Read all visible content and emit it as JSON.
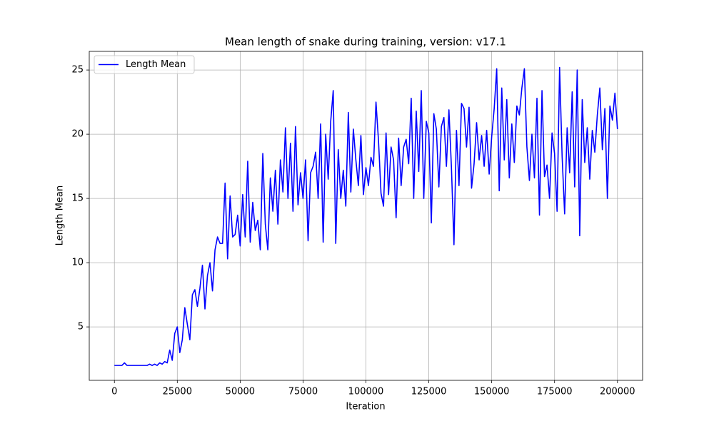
{
  "chart_data": {
    "type": "line",
    "title": "Mean length of snake during training, version: v17.1",
    "x_label": "Iteration",
    "y_label": "Length Mean",
    "xlim": [
      -10000,
      210000
    ],
    "ylim": [
      0.84,
      26.45
    ],
    "xticks": [
      0,
      25000,
      50000,
      75000,
      100000,
      125000,
      150000,
      175000,
      200000
    ],
    "yticks": [
      5,
      10,
      15,
      20,
      25
    ],
    "grid": true,
    "legend": "upper left",
    "x": [
      0,
      1000,
      2000,
      3000,
      4000,
      5000,
      6000,
      7000,
      8000,
      9000,
      10000,
      11000,
      12000,
      13000,
      14000,
      15000,
      16000,
      17000,
      18000,
      19000,
      20000,
      21000,
      22000,
      23000,
      24000,
      25000,
      26000,
      27000,
      28000,
      29000,
      30000,
      31000,
      32000,
      33000,
      34000,
      35000,
      36000,
      37000,
      38000,
      39000,
      40000,
      41000,
      42000,
      43000,
      44000,
      45000,
      46000,
      47000,
      48000,
      49000,
      50000,
      51000,
      52000,
      53000,
      54000,
      55000,
      56000,
      57000,
      58000,
      59000,
      60000,
      61000,
      62000,
      63000,
      64000,
      65000,
      66000,
      67000,
      68000,
      69000,
      70000,
      71000,
      72000,
      73000,
      74000,
      75000,
      76000,
      77000,
      78000,
      79000,
      80000,
      81000,
      82000,
      83000,
      84000,
      85000,
      86000,
      87000,
      88000,
      89000,
      90000,
      91000,
      92000,
      93000,
      94000,
      95000,
      96000,
      97000,
      98000,
      99000,
      100000,
      101000,
      102000,
      103000,
      104000,
      105000,
      106000,
      107000,
      108000,
      109000,
      110000,
      111000,
      112000,
      113000,
      114000,
      115000,
      116000,
      117000,
      118000,
      119000,
      120000,
      121000,
      122000,
      123000,
      124000,
      125000,
      126000,
      127000,
      128000,
      129000,
      130000,
      131000,
      132000,
      133000,
      134000,
      135000,
      136000,
      137000,
      138000,
      139000,
      140000,
      141000,
      142000,
      143000,
      144000,
      145000,
      146000,
      147000,
      148000,
      149000,
      150000,
      151000,
      152000,
      153000,
      154000,
      155000,
      156000,
      157000,
      158000,
      159000,
      160000,
      161000,
      162000,
      163000,
      164000,
      165000,
      166000,
      167000,
      168000,
      169000,
      170000,
      171000,
      172000,
      173000,
      174000,
      175000,
      176000,
      177000,
      178000,
      179000,
      180000,
      181000,
      182000,
      183000,
      184000,
      185000,
      186000,
      187000,
      188000,
      189000,
      190000,
      191000,
      192000,
      193000,
      194000,
      195000,
      196000,
      197000,
      198000,
      199000,
      200000
    ],
    "series": [
      {
        "name": "Length Mean",
        "color": "#0000ff",
        "values": [
          2,
          2,
          2,
          2,
          2.2,
          2,
          2,
          2,
          2,
          2,
          2,
          2,
          2,
          2,
          2.1,
          2,
          2.1,
          2,
          2.2,
          2.1,
          2.3,
          2.2,
          3.2,
          2.4,
          4.5,
          5,
          3,
          4,
          6.5,
          5.2,
          4,
          7.5,
          7.9,
          6.6,
          8,
          9.8,
          6.4,
          9,
          10,
          7.8,
          11,
          12,
          11.5,
          11.5,
          16.2,
          10.3,
          15.2,
          12,
          12.2,
          13.7,
          11.3,
          15.3,
          12,
          17.9,
          11.6,
          14.7,
          12.5,
          13.3,
          11,
          18.5,
          13,
          11,
          16.6,
          14,
          17.2,
          13,
          18,
          15.5,
          20.5,
          15,
          19.3,
          14,
          20.6,
          14.5,
          17,
          15,
          18,
          11.7,
          17,
          17.5,
          18.6,
          15,
          20.8,
          11.6,
          20,
          16.5,
          21,
          23.4,
          11.5,
          18.8,
          15,
          17.2,
          14.4,
          21.7,
          15.5,
          20.4,
          18,
          16,
          19.9,
          15.3,
          17.4,
          16,
          18.2,
          17.5,
          22.5,
          19.5,
          15.4,
          14.4,
          20.1,
          15.3,
          19,
          18,
          13.5,
          19.7,
          16,
          19,
          19.6,
          17.7,
          22.8,
          15,
          21.8,
          17.1,
          23.4,
          15,
          21,
          20.1,
          13.1,
          21.6,
          20.4,
          15.9,
          20.6,
          21.3,
          17.5,
          21.9,
          17.4,
          11.4,
          20.3,
          16,
          22.4,
          22,
          19,
          22.1,
          15.8,
          17.7,
          20.9,
          18,
          19.9,
          17.5,
          20.3,
          16.9,
          19.8,
          22,
          25.1,
          15.6,
          23.6,
          18,
          22.7,
          16.6,
          20.8,
          17.8,
          22.2,
          21.5,
          23.6,
          25.1,
          19,
          16.4,
          20,
          16.6,
          22.8,
          13.7,
          23.4,
          16.7,
          17.6,
          15,
          20.1,
          18.5,
          14,
          25.2,
          18.3,
          13.8,
          20.5,
          17,
          23.3,
          15.9,
          25,
          12.1,
          22.7,
          17.8,
          20.5,
          16.5,
          20.3,
          18.6,
          21.5,
          23.6,
          18.8,
          22,
          15,
          22.2,
          21.1,
          23.2,
          20.4
        ]
      }
    ]
  }
}
